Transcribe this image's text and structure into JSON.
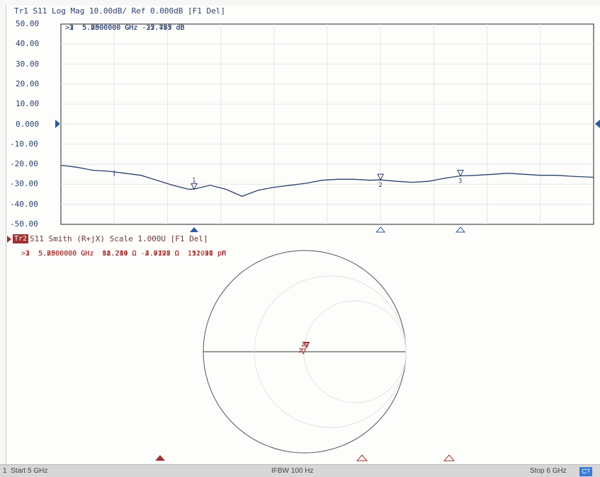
{
  "trace1": {
    "header": "Tr1 S11 Log Mag 10.00dB/ Ref 0.000dB [F1 Del]",
    "y_ticks": [
      "50.00",
      "40.00",
      "30.00",
      "20.00",
      "10.00",
      "0.000",
      "-10.00",
      "-20.00",
      "-30.00",
      "-40.00",
      "-50.00"
    ],
    "marker_lines": [
      ">1  5.2500000 GHz -32.453 dB",
      " 2  5.6000000 GHz -27.767 dB",
      " 3  5.7500000 GHz -25.775 dB"
    ],
    "marker_labels": [
      "1",
      "2",
      "3"
    ],
    "color": "#2c3f6e"
  },
  "trace2": {
    "label_tag": "Tr2",
    "header": "S11 Smith (R+jX) Scale 1.000U [F1 Del]",
    "marker_lines": [
      ">1  5.2500000 GHz  48.784 Ω -2.0175 Ω  15.026 pF",
      " 2  5.6000000 GHz  51.289 Ω  3.9397 Ω  111.97 pH",
      " 3  5.7500000 GHz  52.219 Ω  4.7728 Ω  132.11 pH"
    ],
    "color": "#a03030"
  },
  "status_bar": {
    "start": "1  Start 5 GHz",
    "ifbw": "IFBW 100 Hz",
    "stop": "Stop 6 GHz",
    "channel_badge": "C?"
  },
  "chart_data": {
    "type": "line",
    "title": "Tr1 S11 Log Mag 10.00dB/ Ref 0.000dB [F1 Del]",
    "xlabel": "",
    "ylabel": "",
    "xlim": [
      5.0,
      6.0
    ],
    "ylim": [
      -50,
      50
    ],
    "grid": true,
    "series": [
      {
        "x": [
          5.0,
          5.03,
          5.06,
          5.09,
          5.12,
          5.15,
          5.18,
          5.21,
          5.24,
          5.25,
          5.28,
          5.31,
          5.34,
          5.37,
          5.4,
          5.43,
          5.46,
          5.49,
          5.52,
          5.55,
          5.58,
          5.6,
          5.63,
          5.66,
          5.69,
          5.72,
          5.75,
          5.78,
          5.81,
          5.84,
          5.87,
          5.9,
          5.93,
          5.96,
          6.0
        ],
        "y": [
          -20.5,
          -21.5,
          -23.0,
          -23.5,
          -24.5,
          -25.5,
          -28.0,
          -30.5,
          -32.5,
          -32.4,
          -30.5,
          -32.5,
          -36.0,
          -33.0,
          -31.5,
          -30.5,
          -29.5,
          -28.0,
          -27.5,
          -27.5,
          -28.0,
          -27.8,
          -28.5,
          -29.0,
          -28.5,
          -27.0,
          -25.8,
          -25.5,
          -25.0,
          -24.5,
          -25.0,
          -25.5,
          -25.5,
          -26.0,
          -26.5
        ]
      }
    ],
    "markers": [
      {
        "id": "1",
        "freq_ghz": 5.25,
        "value_db": -32.453
      },
      {
        "id": "2",
        "freq_ghz": 5.6,
        "value_db": -27.767
      },
      {
        "id": "3",
        "freq_ghz": 5.75,
        "value_db": -25.775
      }
    ],
    "smith_markers": [
      {
        "id": "1",
        "r_ohm": 48.784,
        "x_ohm": -2.0175
      },
      {
        "id": "2",
        "r_ohm": 51.289,
        "x_ohm": 3.9397
      },
      {
        "id": "3",
        "r_ohm": 52.219,
        "x_ohm": 4.7728
      }
    ]
  }
}
